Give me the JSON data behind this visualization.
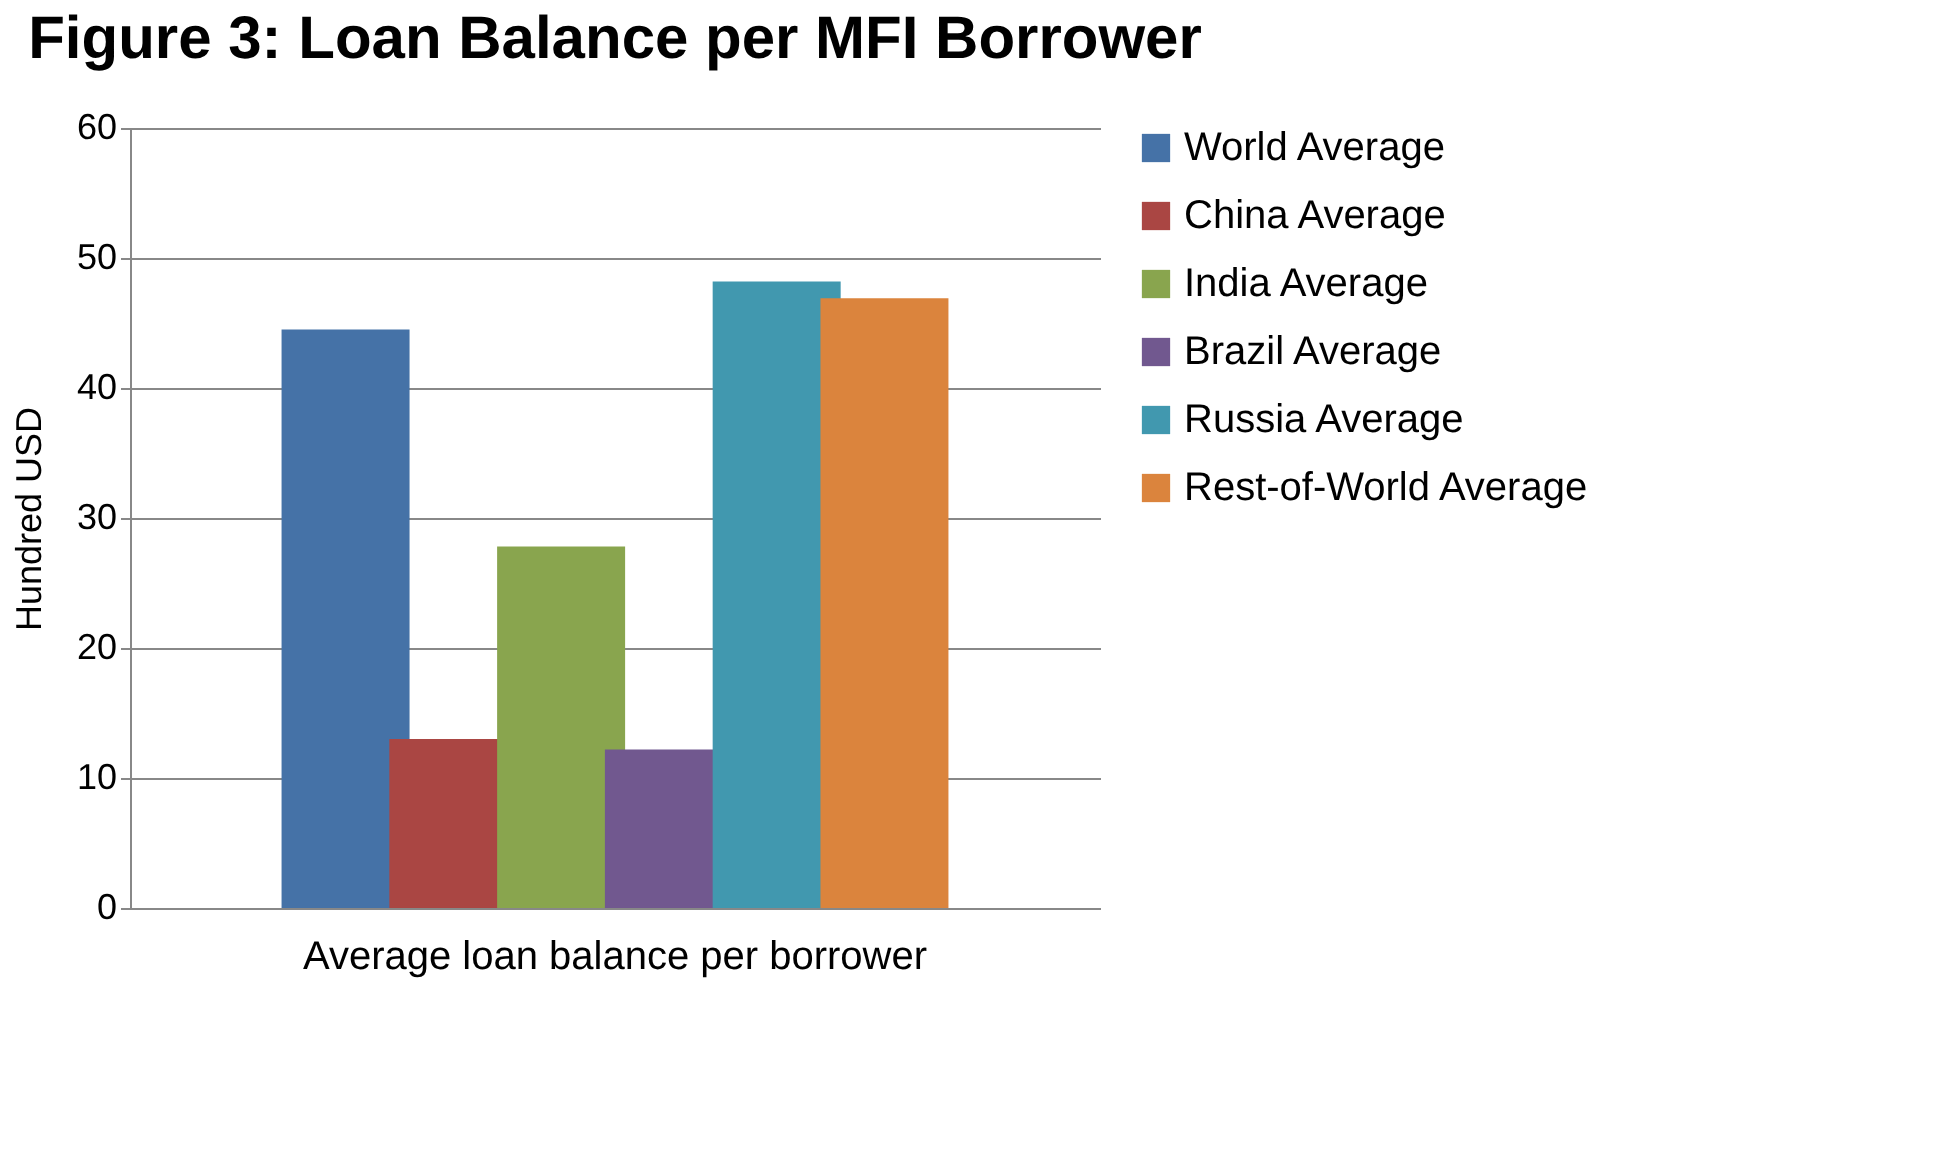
{
  "chart_data": {
    "type": "bar",
    "title": "Figure 3: Loan Balance per MFI Borrower",
    "ylabel": "Hundred USD",
    "categories": [
      "Average loan balance per borrower"
    ],
    "series": [
      {
        "name": "World Average",
        "color": "#4572a7",
        "values": [
          44.5
        ]
      },
      {
        "name": "China Average",
        "color": "#aa4643",
        "values": [
          13.0
        ]
      },
      {
        "name": "India Average",
        "color": "#89a54e",
        "values": [
          27.8
        ]
      },
      {
        "name": "Brazil Average",
        "color": "#71588f",
        "values": [
          12.2
        ]
      },
      {
        "name": "Russia Average",
        "color": "#4198af",
        "values": [
          48.2
        ]
      },
      {
        "name": "Rest-of-World Average",
        "color": "#db843d",
        "values": [
          46.9
        ]
      }
    ],
    "ylim": [
      0,
      60
    ],
    "yticks": [
      0,
      10,
      20,
      30,
      40,
      50,
      60
    ],
    "grid": "y",
    "legend": "right"
  }
}
